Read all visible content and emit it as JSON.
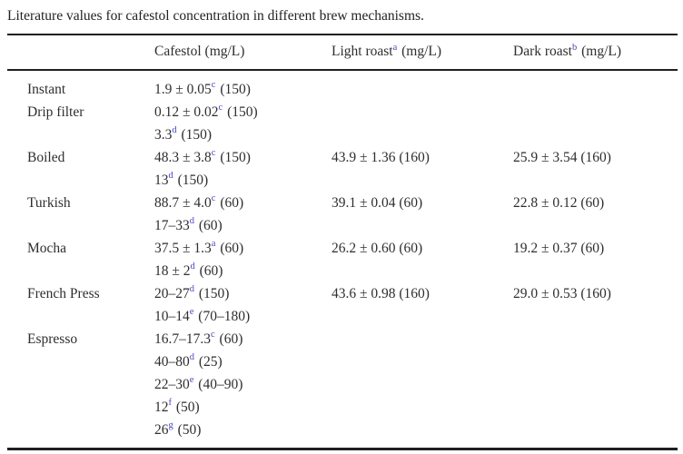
{
  "caption": "Literature values for cafestol concentration in different brew mechanisms.",
  "colors": {
    "text": "#2e2e2e",
    "footnote_link": "#4545c8",
    "rule": "#1f1f1f",
    "background": "#ffffff"
  },
  "columns": [
    {
      "pre": "",
      "sup": "",
      "post": ""
    },
    {
      "pre": "Cafestol (mg/L)",
      "sup": "",
      "post": ""
    },
    {
      "pre": "Light roast",
      "sup": "a",
      "post": " (mg/L)"
    },
    {
      "pre": "Dark roast",
      "sup": "b",
      "post": " (mg/L)"
    }
  ],
  "rows": [
    {
      "method": "Instant",
      "cafestol": [
        {
          "pre": "1.9 ± 0.05",
          "sup": "c",
          "post": " (150)"
        }
      ],
      "light": [],
      "dark": []
    },
    {
      "method": "Drip filter",
      "cafestol": [
        {
          "pre": "0.12 ± 0.02",
          "sup": "c",
          "post": " (150)"
        },
        {
          "pre": "3.3",
          "sup": "d",
          "post": " (150)"
        }
      ],
      "light": [],
      "dark": []
    },
    {
      "method": "Boiled",
      "cafestol": [
        {
          "pre": "48.3 ± 3.8",
          "sup": "c",
          "post": " (150)"
        },
        {
          "pre": "13",
          "sup": "d",
          "post": " (150)"
        }
      ],
      "light": [
        {
          "pre": "43.9 ± 1.36",
          "sup": "",
          "post": " (160)"
        }
      ],
      "dark": [
        {
          "pre": "25.9 ± 3.54",
          "sup": "",
          "post": " (160)"
        }
      ]
    },
    {
      "method": "Turkish",
      "cafestol": [
        {
          "pre": "88.7 ± 4.0",
          "sup": "c",
          "post": " (60)"
        },
        {
          "pre": "17–33",
          "sup": "d",
          "post": " (60)"
        }
      ],
      "light": [
        {
          "pre": "39.1 ± 0.04",
          "sup": "",
          "post": " (60)"
        }
      ],
      "dark": [
        {
          "pre": "22.8 ± 0.12",
          "sup": "",
          "post": " (60)"
        }
      ]
    },
    {
      "method": "Mocha",
      "cafestol": [
        {
          "pre": "37.5 ± 1.3",
          "sup": "a",
          "post": " (60)"
        },
        {
          "pre": "18 ± 2",
          "sup": "d",
          "post": " (60)"
        }
      ],
      "light": [
        {
          "pre": "26.2 ± 0.60",
          "sup": "",
          "post": " (60)"
        }
      ],
      "dark": [
        {
          "pre": "19.2 ± 0.37",
          "sup": "",
          "post": " (60)"
        }
      ]
    },
    {
      "method": "French Press",
      "cafestol": [
        {
          "pre": "20–27",
          "sup": "d",
          "post": " (150)"
        },
        {
          "pre": "10–14",
          "sup": "e",
          "post": " (70–180)"
        }
      ],
      "light": [
        {
          "pre": "43.6 ± 0.98",
          "sup": "",
          "post": " (160)"
        }
      ],
      "dark": [
        {
          "pre": "29.0 ± 0.53",
          "sup": "",
          "post": " (160)"
        }
      ]
    },
    {
      "method": "Espresso",
      "cafestol": [
        {
          "pre": "16.7–17.3",
          "sup": "c",
          "post": " (60)"
        },
        {
          "pre": "40–80",
          "sup": "d",
          "post": " (25)"
        },
        {
          "pre": "22–30",
          "sup": "e",
          "post": " (40–90)"
        },
        {
          "pre": "12",
          "sup": "f",
          "post": " (50)"
        },
        {
          "pre": "26",
          "sup": "g",
          "post": " (50)"
        }
      ],
      "light": [],
      "dark": []
    }
  ]
}
